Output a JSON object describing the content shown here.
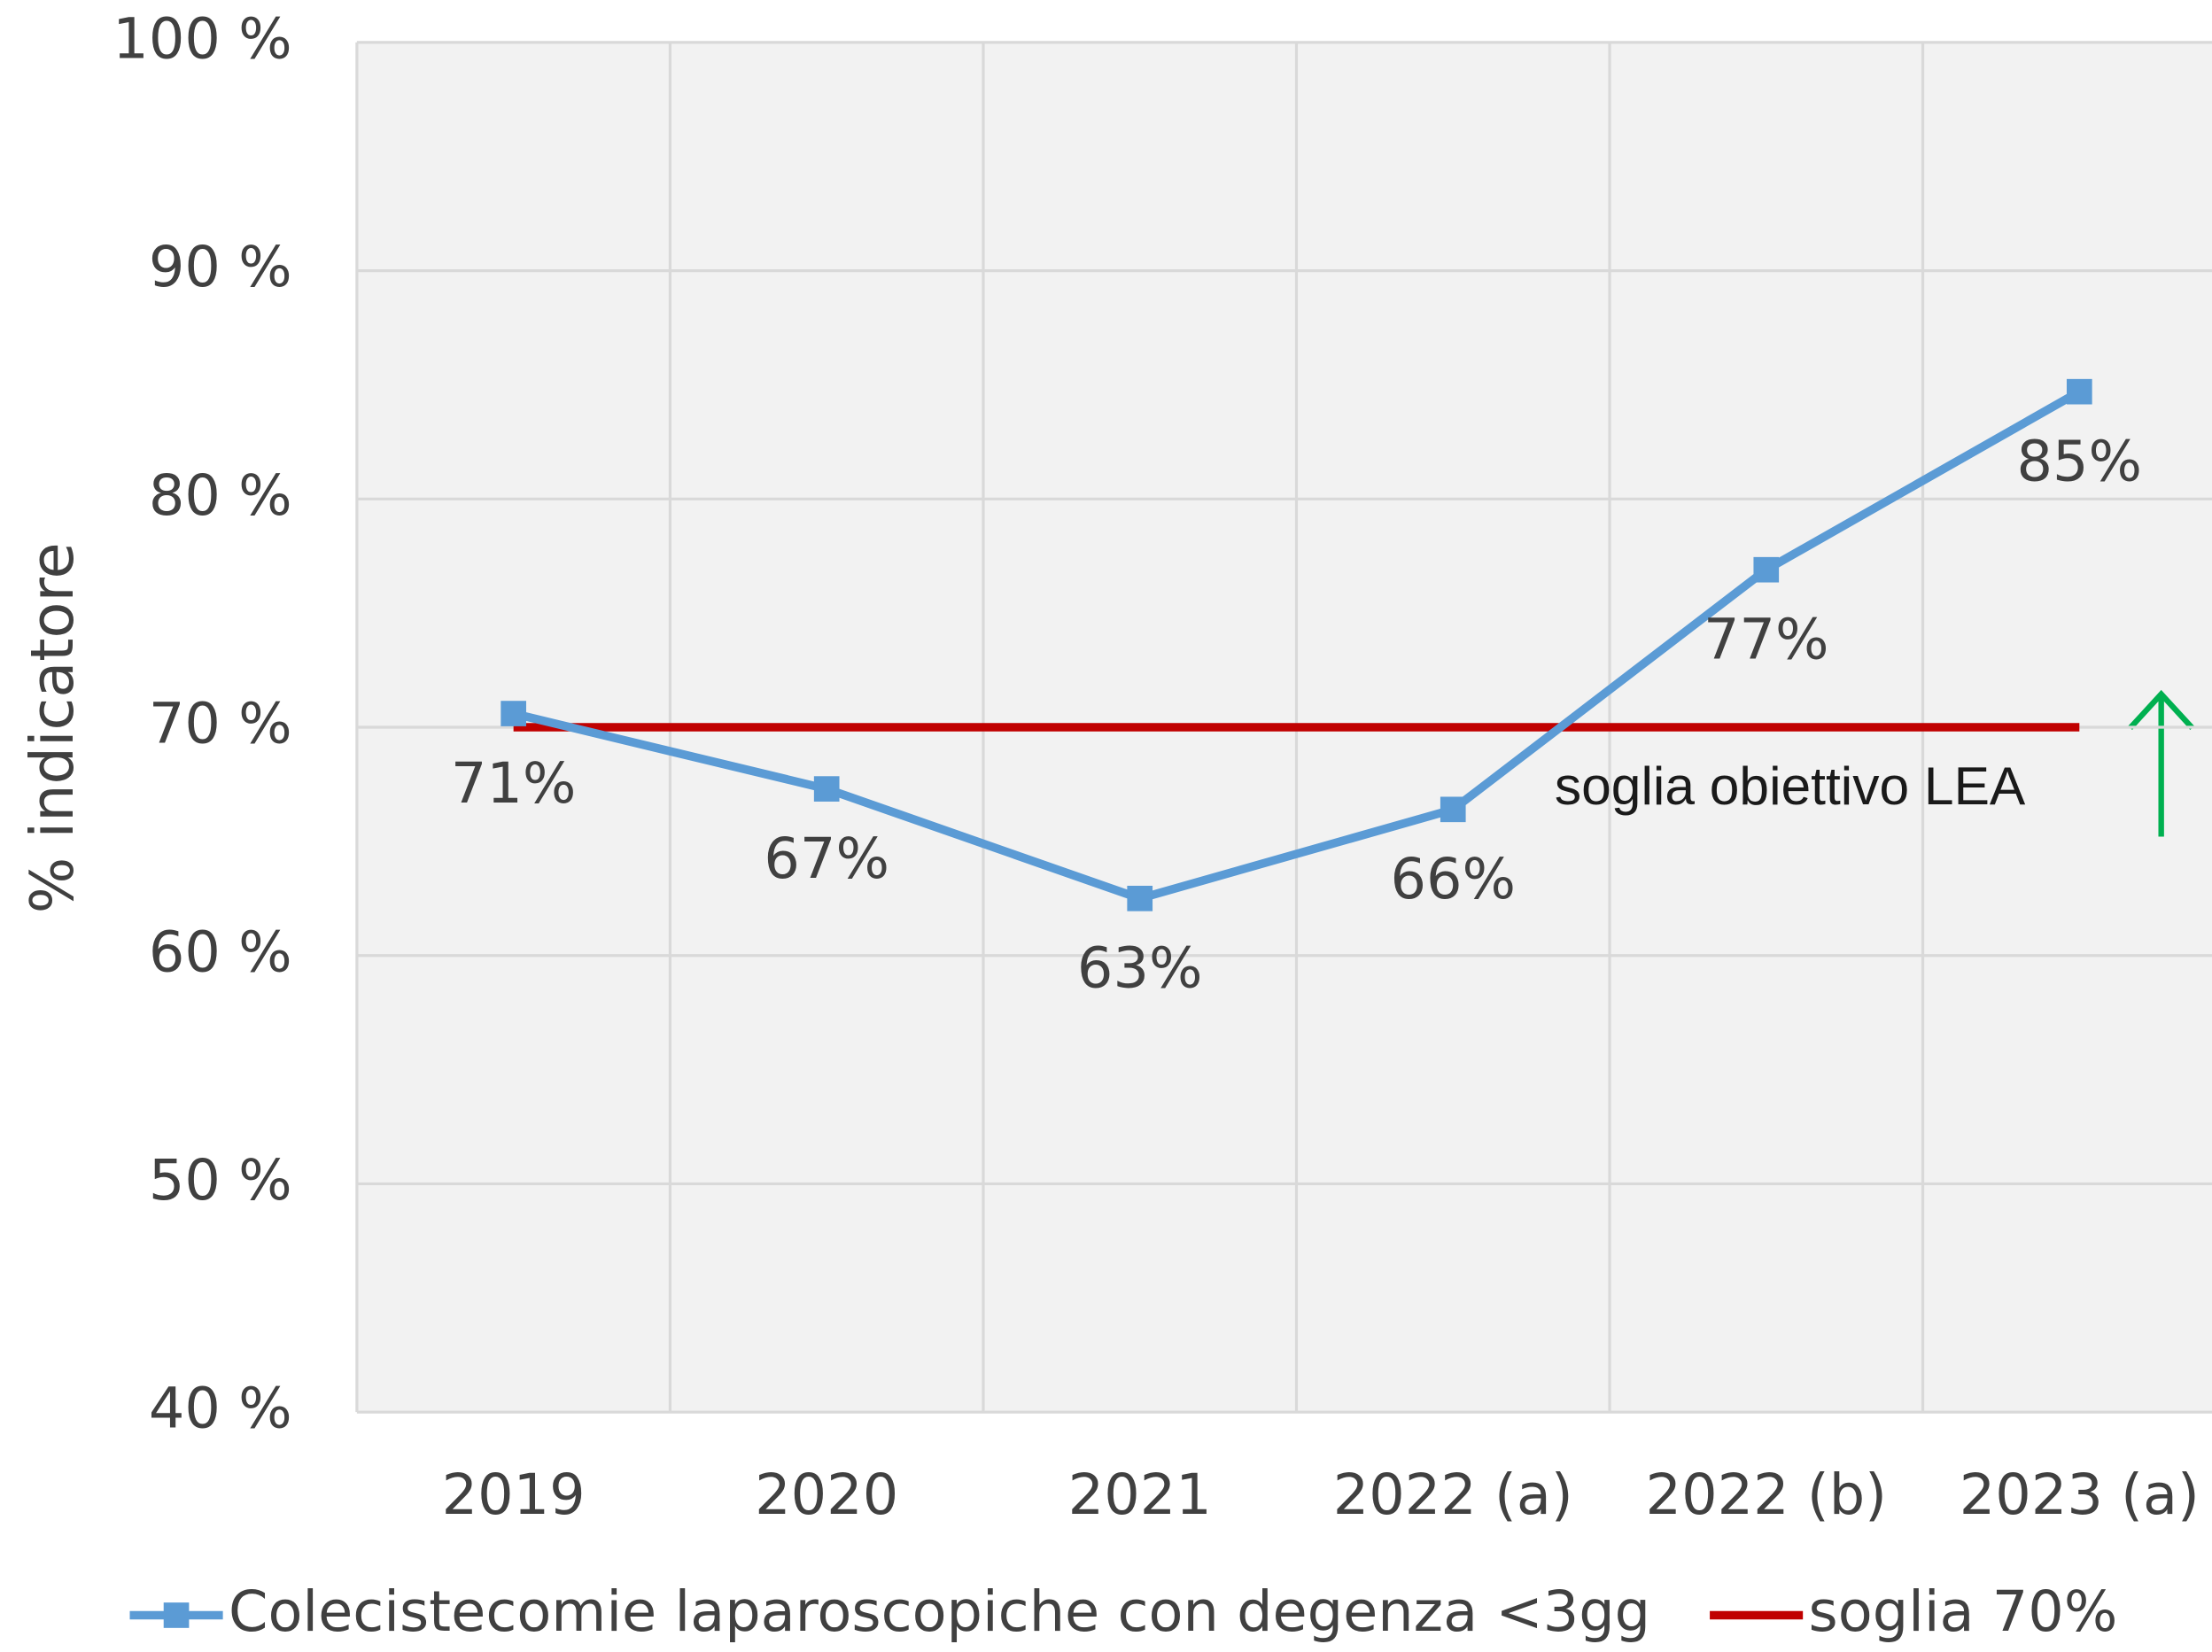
{
  "chart_data": {
    "type": "line",
    "y_axis_label": "% indicatore",
    "categories": [
      "2019",
      "2020",
      "2021",
      "2022 (a)",
      "2022 (b)",
      "2023 (a)"
    ],
    "series": [
      {
        "name": "Colecistecomie laparoscopiche con degenza <3gg",
        "color": "#5b9bd5",
        "values": [
          70.6,
          67.3,
          62.5,
          66.4,
          76.9,
          84.7
        ],
        "value_labels": [
          "71%",
          "67%",
          "63%",
          "66%",
          "77%",
          "85%"
        ]
      },
      {
        "name": "soglia 70%",
        "color": "#c00000",
        "values": [
          70,
          70,
          70,
          70,
          70,
          70
        ]
      }
    ],
    "annotation": "soglia obiettivo LEA",
    "ylim": [
      40,
      100
    ],
    "yticks": [
      {
        "value": 40,
        "label": "40 %"
      },
      {
        "value": 50,
        "label": "50 %"
      },
      {
        "value": 60,
        "label": "60 %"
      },
      {
        "value": 70,
        "label": "70 %"
      },
      {
        "value": 80,
        "label": "80 %"
      },
      {
        "value": 90,
        "label": "90 %"
      },
      {
        "value": 100,
        "label": "100 %"
      }
    ],
    "grid": true
  }
}
